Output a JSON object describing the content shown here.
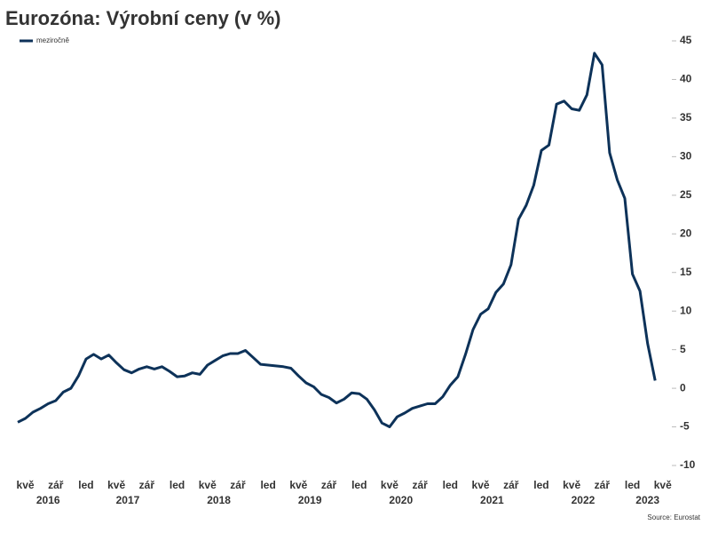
{
  "chart_data": {
    "type": "line",
    "title": "Eurozóna: Výrobní ceny (v %)",
    "source": "Source: Eurostat",
    "years": [
      {
        "name": "2016",
        "categories": [
          null,
          "kvě",
          null,
          null,
          null,
          "zář",
          null,
          null,
          null
        ]
      },
      {
        "name": "2017",
        "categories": [
          "led",
          null,
          null,
          null,
          "kvě",
          null,
          null,
          null,
          "zář",
          null,
          null,
          null
        ]
      },
      {
        "name": "2018",
        "categories": [
          "led",
          null,
          null,
          null,
          "kvě",
          null,
          null,
          null,
          "zář",
          null,
          null,
          null
        ]
      },
      {
        "name": "2019",
        "categories": [
          "led",
          null,
          null,
          null,
          "kvě",
          null,
          null,
          null,
          "zář",
          null,
          null,
          null
        ]
      },
      {
        "name": "2020",
        "categories": [
          "led",
          null,
          null,
          null,
          "kvě",
          null,
          null,
          null,
          "zář",
          null,
          null,
          null
        ]
      },
      {
        "name": "2021",
        "categories": [
          "led",
          null,
          null,
          null,
          "kvě",
          null,
          null,
          null,
          "zář",
          null,
          null,
          null
        ]
      },
      {
        "name": "2022",
        "categories": [
          "led",
          null,
          null,
          null,
          "kvě",
          null,
          null,
          null,
          "zář",
          null,
          null,
          null
        ]
      },
      {
        "name": "2023",
        "categories": [
          "led",
          null,
          null,
          null,
          "kvě"
        ]
      }
    ],
    "series": [
      {
        "name": "meziročně",
        "color": "#0d3259",
        "values": [
          -4.4,
          -3.9,
          -3.1,
          -2.6,
          -2.0,
          -1.6,
          -0.5,
          0.0,
          1.6,
          3.8,
          4.4,
          3.8,
          4.3,
          3.3,
          2.4,
          2.0,
          2.5,
          2.8,
          2.5,
          2.8,
          2.2,
          1.5,
          1.6,
          2.0,
          1.8,
          3.0,
          3.6,
          4.2,
          4.5,
          4.5,
          4.9,
          4.0,
          3.1,
          3.0,
          2.9,
          2.8,
          2.6,
          1.6,
          0.7,
          0.2,
          -0.8,
          -1.2,
          -1.9,
          -1.4,
          -0.6,
          -0.7,
          -1.4,
          -2.8,
          -4.5,
          -5.0,
          -3.7,
          -3.2,
          -2.6,
          -2.3,
          -2.0,
          -2.0,
          -1.1,
          0.4,
          1.5,
          4.4,
          7.6,
          9.6,
          10.3,
          12.4,
          13.5,
          16.0,
          21.9,
          23.7,
          26.3,
          30.8,
          31.5,
          36.8,
          37.2,
          36.2,
          36.0,
          38.0,
          43.4,
          41.9,
          30.5,
          27.0,
          24.6,
          14.8,
          12.6,
          5.8,
          1.0,
          null
        ]
      }
    ],
    "ylim": [
      -10,
      45
    ],
    "yticks": [
      -10,
      -5,
      0,
      5,
      10,
      15,
      20,
      25,
      30,
      35,
      40,
      45
    ],
    "grid": false
  }
}
